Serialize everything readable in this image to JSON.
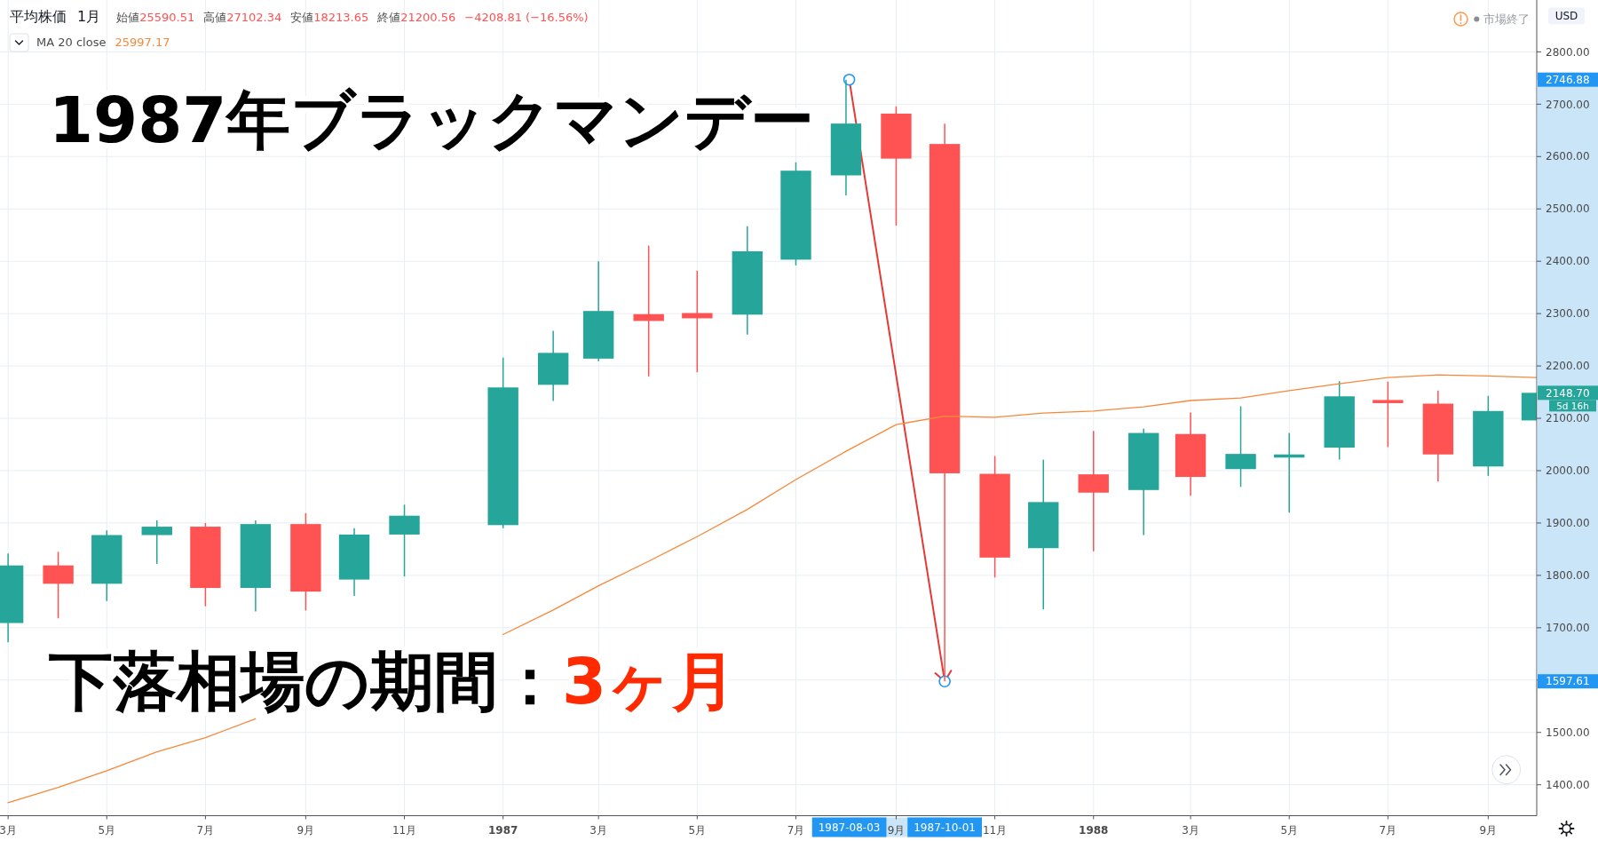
{
  "chart_data": {
    "type": "candlestick",
    "title": "平均株価",
    "subtitle": "1月",
    "ylabel": "USD",
    "x": [
      "1986-03",
      "1986-04",
      "1986-05",
      "1986-06",
      "1986-07",
      "1986-08",
      "1986-09",
      "1986-10",
      "1986-11",
      "1986-12",
      "1987-01",
      "1987-02",
      "1987-03",
      "1987-04",
      "1987-05",
      "1987-06",
      "1987-07",
      "1987-08",
      "1987-09",
      "1987-10",
      "1987-11",
      "1987-12",
      "1988-01",
      "1988-02",
      "1988-03",
      "1988-04",
      "1988-05",
      "1988-06",
      "1988-07",
      "1988-08",
      "1988-09",
      "1988-10"
    ],
    "ohlc": [
      [
        1709,
        1842,
        1672,
        1819
      ],
      [
        1819,
        1845,
        1718,
        1784
      ],
      [
        1784,
        1886,
        1751,
        1877
      ],
      [
        1877,
        1905,
        1822,
        1893
      ],
      [
        1893,
        1900,
        1741,
        1776
      ],
      [
        1776,
        1905,
        1731,
        1898
      ],
      [
        1898,
        1919,
        1733,
        1769
      ],
      [
        1792,
        1890,
        1761,
        1878
      ],
      [
        1878,
        1935,
        1798,
        1914
      ],
      null,
      [
        1896,
        2216,
        1890,
        2159
      ],
      [
        2164,
        2267,
        2133,
        2225
      ],
      [
        2214,
        2400,
        2209,
        2305
      ],
      [
        2299,
        2430,
        2180,
        2286
      ],
      [
        2301,
        2382,
        2188,
        2291
      ],
      [
        2298,
        2467,
        2260,
        2419
      ],
      [
        2403,
        2589,
        2392,
        2573
      ],
      [
        2564,
        2746.88,
        2526,
        2663
      ],
      [
        2682,
        2696,
        2468,
        2596
      ],
      [
        2624,
        2663,
        1597.61,
        1995
      ],
      [
        1994,
        2028,
        1796,
        1834
      ],
      [
        1852,
        2021,
        1735,
        1940
      ],
      [
        1993,
        2076,
        1846,
        1958
      ],
      [
        1963,
        2080,
        1877,
        2072
      ],
      [
        2070,
        2111,
        1952,
        1988
      ],
      [
        2003,
        2123,
        1969,
        2032
      ],
      [
        2025,
        2072,
        1920,
        2031
      ],
      [
        2044,
        2171,
        2021,
        2142
      ],
      [
        2135,
        2170,
        2045,
        2129
      ],
      [
        2128,
        2153,
        1979,
        2031
      ],
      [
        2008,
        2143,
        1990,
        2114
      ],
      [
        2096,
        2149,
        2096,
        2148.7
      ]
    ],
    "colors": [
      "#26a69a",
      "#ff5252",
      "#26a69a",
      "#26a69a",
      "#ff5252",
      "#26a69a",
      "#ff5252",
      "#26a69a",
      "#26a69a",
      null,
      "#26a69a",
      "#26a69a",
      "#26a69a",
      "#ff5252",
      "#ff5252",
      "#26a69a",
      "#26a69a",
      "#26a69a",
      "#ff5252",
      "#ff5252",
      "#ff5252",
      "#26a69a",
      "#ff5252",
      "#26a69a",
      "#ff5252",
      "#26a69a",
      "#26a69a",
      "#26a69a",
      "#ff5252",
      "#ff5252",
      "#26a69a",
      "#26a69a"
    ],
    "series": [
      {
        "type": "line",
        "name": "MA 20 close",
        "color": "#f7883a",
        "values": [
          1366,
          1395,
          1427,
          1463,
          1490,
          1526,
          null,
          null,
          null,
          null,
          1687,
          1734,
          1780,
          1827,
          1874,
          1926,
          1983,
          2037,
          2088,
          2104,
          2102,
          2110,
          2114,
          2122,
          2134,
          2139,
          2153,
          2166,
          2178,
          2183,
          2181,
          2178
        ]
      },
      {
        "type": "line",
        "color": "#e53935",
        "marker": "circle",
        "x": [
          "1987-08-03",
          "1987-10-01"
        ],
        "values": [
          2746.88,
          1597.61
        ]
      }
    ],
    "xlim": [
      "1986-02-24",
      "1988-10-01"
    ],
    "xticks": [
      {
        "value": "1986-03",
        "label": "3月"
      },
      {
        "value": "1986-05",
        "label": "5月"
      },
      {
        "value": "1986-07",
        "label": "7月"
      },
      {
        "value": "1986-09",
        "label": "9月"
      },
      {
        "value": "1986-11",
        "label": "11月"
      },
      {
        "value": "1987-01",
        "label": "1987"
      },
      {
        "value": "1987-03",
        "label": "3月"
      },
      {
        "value": "1987-05",
        "label": "5月"
      },
      {
        "value": "1987-07",
        "label": "7月"
      },
      {
        "value": "1987-08-03",
        "label": "1987-08-03"
      },
      {
        "value": "1987-09",
        "label": "9月"
      },
      {
        "value": "1987-10-01",
        "label": "1987-10-01"
      },
      {
        "value": "1987-11",
        "label": "11月"
      },
      {
        "value": "1988-01",
        "label": "1988"
      },
      {
        "value": "1988-03",
        "label": "3月"
      },
      {
        "value": "1988-05",
        "label": "5月"
      },
      {
        "value": "1988-07",
        "label": "7月"
      },
      {
        "value": "1988-09",
        "label": "9月"
      }
    ],
    "ylim": [
      1341,
      2899
    ],
    "yticks": [
      {
        "value": 1400,
        "label": "1400.00"
      },
      {
        "value": 1500,
        "label": "1500.00"
      },
      {
        "value": 1600,
        "label": null
      },
      {
        "value": 1700,
        "label": "1700.00"
      },
      {
        "value": 1800,
        "label": "1800.00"
      },
      {
        "value": 1900,
        "label": "1900.00"
      },
      {
        "value": 2000,
        "label": "2000.00"
      },
      {
        "value": 2100,
        "label": "2100.00"
      },
      {
        "value": 2200,
        "label": "2200.00"
      },
      {
        "value": 2300,
        "label": "2300.00"
      },
      {
        "value": 2400,
        "label": "2400.00"
      },
      {
        "value": 2500,
        "label": "2500.00"
      },
      {
        "value": 2600,
        "label": "2600.00"
      },
      {
        "value": 2700,
        "label": "2700.00"
      },
      {
        "value": 2800,
        "label": "2800.00"
      },
      {
        "value": 1597.61,
        "label": "1597.61"
      },
      {
        "value": 2746.88,
        "label": "2746.88"
      },
      {
        "value": 2148.7,
        "label": "2148.70"
      }
    ],
    "grid": true,
    "legend": "top left",
    "annotations": [
      "始値25590.51",
      "高値27102.34",
      "安値18213.65",
      "終値21200.56",
      "−4208.81 (−16.56%)",
      "25997.17",
      "市場終了",
      "5d 16h",
      "1987年ブラックマンデー",
      "下落相場の期間：",
      "3ヶ月"
    ]
  }
}
